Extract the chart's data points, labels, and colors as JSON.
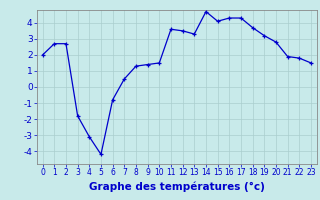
{
  "x": [
    0,
    1,
    2,
    3,
    4,
    5,
    6,
    7,
    8,
    9,
    10,
    11,
    12,
    13,
    14,
    15,
    16,
    17,
    18,
    19,
    20,
    21,
    22,
    23
  ],
  "y": [
    2.0,
    2.7,
    2.7,
    -1.8,
    -3.1,
    -4.2,
    -0.8,
    0.5,
    1.3,
    1.4,
    1.5,
    3.6,
    3.5,
    3.3,
    4.7,
    4.1,
    4.3,
    4.3,
    3.7,
    3.2,
    2.8,
    1.9,
    1.8,
    1.5
  ],
  "line_color": "#0000cc",
  "marker": "+",
  "marker_color": "#0000cc",
  "bg_color": "#c8eaea",
  "grid_color": "#aacece",
  "axis_color": "#0000cc",
  "xlabel": "Graphe des températures (°c)",
  "ylim": [
    -4.8,
    4.8
  ],
  "xlim": [
    -0.5,
    23.5
  ],
  "yticks": [
    -4,
    -3,
    -2,
    -1,
    0,
    1,
    2,
    3,
    4
  ],
  "xticks": [
    0,
    1,
    2,
    3,
    4,
    5,
    6,
    7,
    8,
    9,
    10,
    11,
    12,
    13,
    14,
    15,
    16,
    17,
    18,
    19,
    20,
    21,
    22,
    23
  ],
  "xlabel_fontsize": 7.5,
  "tick_fontsize": 6.5,
  "ytick_fontsize": 7,
  "tick_color": "#0000cc",
  "spine_color": "#888888",
  "fig_bg": "#c8eaea"
}
